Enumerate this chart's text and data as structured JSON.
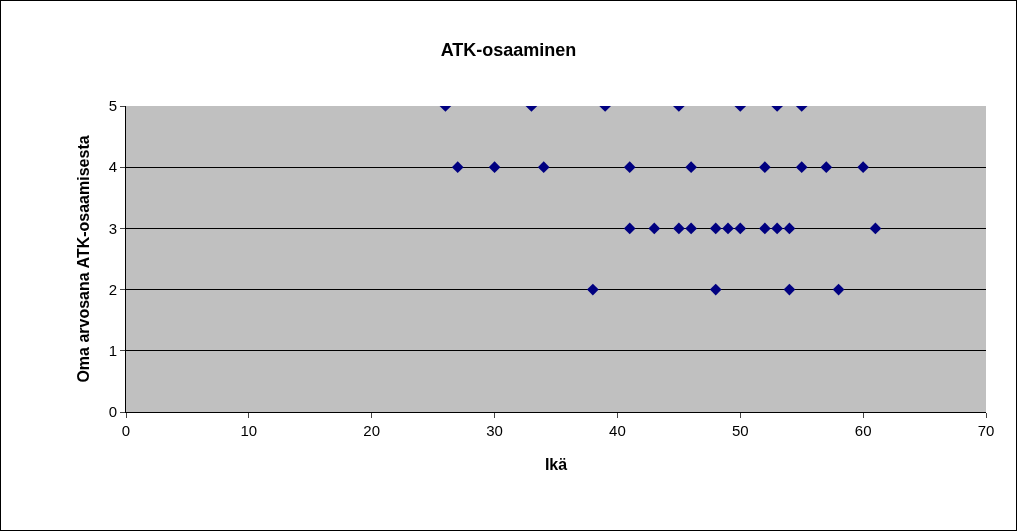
{
  "chart_data": {
    "type": "scatter",
    "title": "ATK-osaaminen",
    "xlabel": "Ikä",
    "ylabel": "Oma arvosana ATK-osaamisesta",
    "x": [
      26,
      33,
      39,
      45,
      50,
      53,
      55,
      27,
      30,
      34,
      41,
      46,
      52,
      55,
      57,
      60,
      41,
      43,
      45,
      46,
      48,
      49,
      50,
      52,
      53,
      54,
      61,
      38,
      48,
      54,
      58
    ],
    "values": [
      5,
      5,
      5,
      5,
      5,
      5,
      5,
      4,
      4,
      4,
      4,
      4,
      4,
      4,
      4,
      4,
      3,
      3,
      3,
      3,
      3,
      3,
      3,
      3,
      3,
      3,
      3,
      2,
      2,
      2,
      2
    ],
    "color": "#000080",
    "marker": "diamond",
    "xlim": [
      0,
      70
    ],
    "ylim": [
      0,
      5
    ],
    "xticks": [
      0,
      10,
      20,
      30,
      40,
      50,
      60,
      70
    ],
    "yticks": [
      0,
      1,
      2,
      3,
      4,
      5
    ],
    "grid": "y"
  }
}
